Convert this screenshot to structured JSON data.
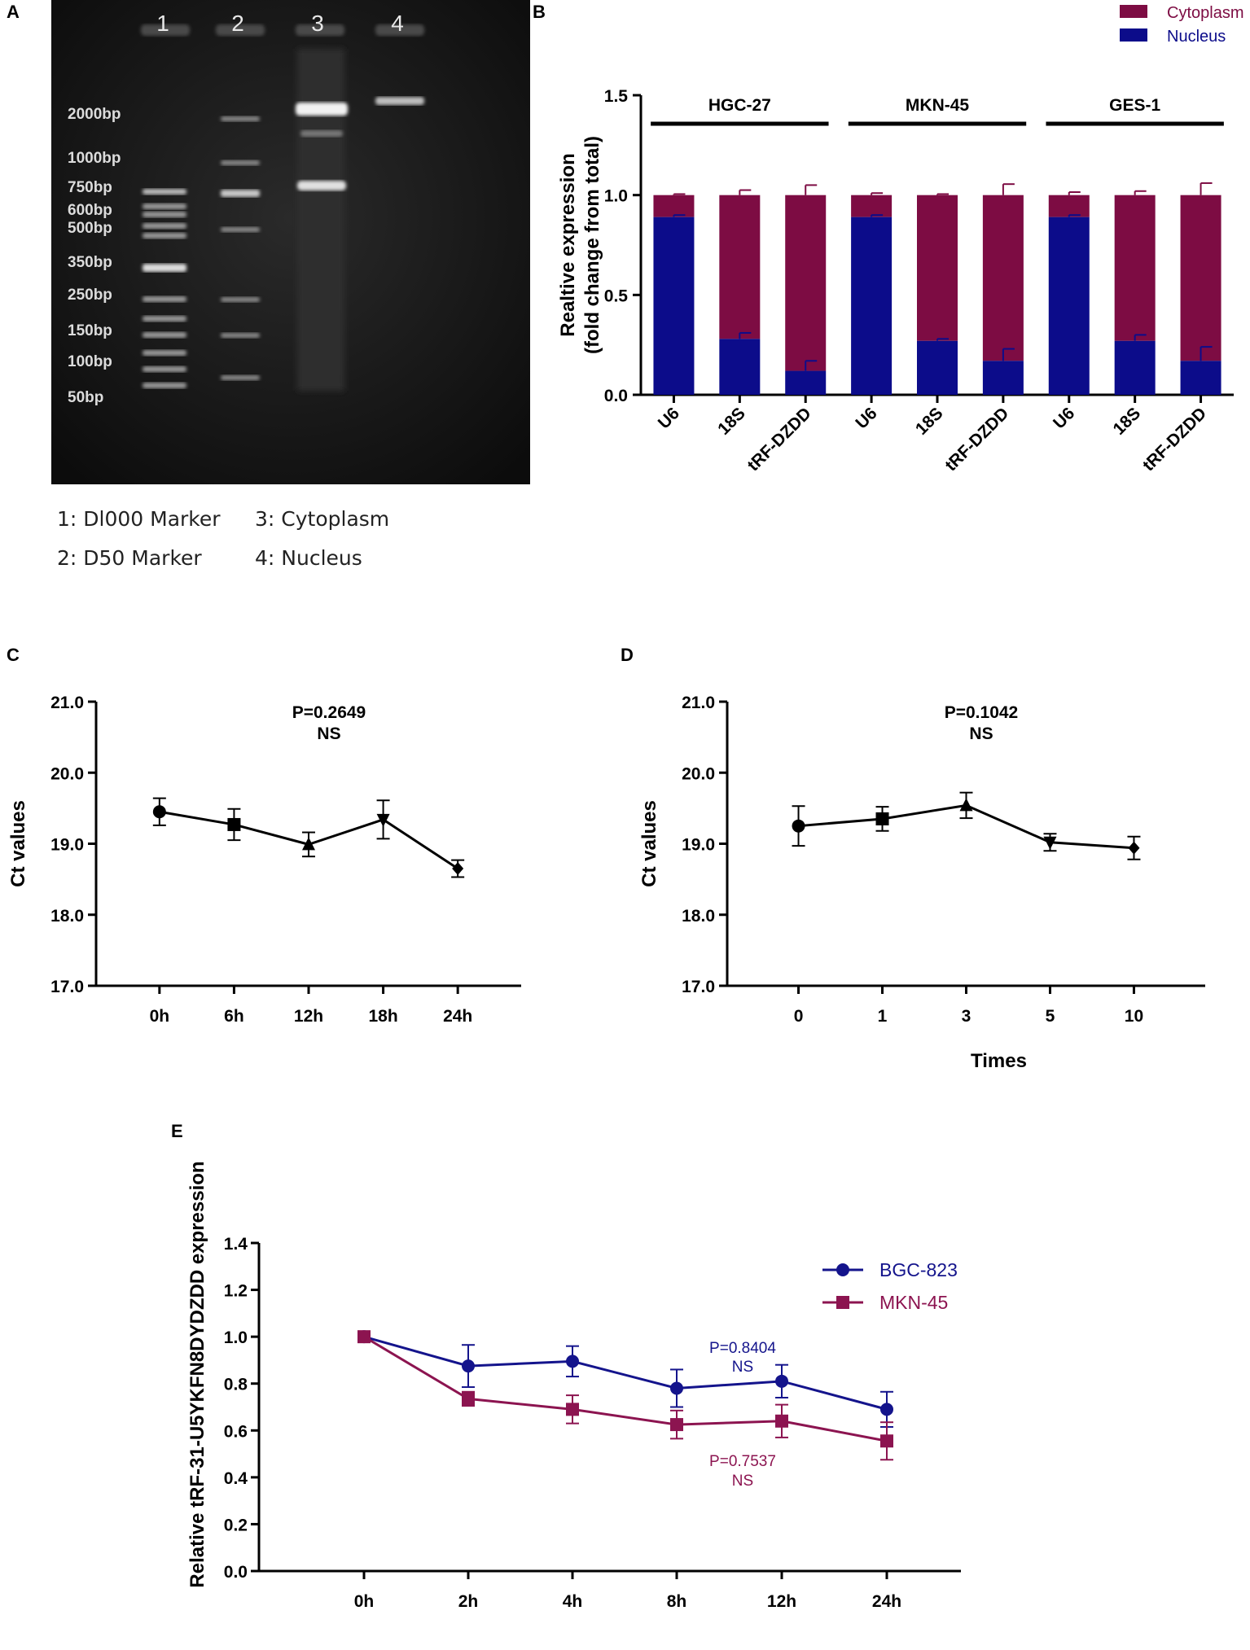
{
  "panel_labels": {
    "A": "A",
    "B": "B",
    "C": "C",
    "D": "D",
    "E": "E"
  },
  "colors": {
    "cytoplasm": "#7d0c43",
    "nucleus": "#0c0c8a",
    "bgc823": "#14148c",
    "mkn45": "#8c1450",
    "black": "#000000"
  },
  "gel": {
    "lane_numbers": [
      "1",
      "2",
      "3",
      "4"
    ],
    "marker_labels": [
      "2000bp",
      "1000bp",
      "750bp",
      "600bp",
      "500bp",
      "350bp",
      "250bp",
      "150bp",
      "100bp",
      "50bp"
    ],
    "legend": [
      "1: Dl000 Marker",
      "3: Cytoplasm",
      "2: D50 Marker",
      "4: Nucleus"
    ]
  },
  "chart_data": [
    {
      "id": "B",
      "type": "bar",
      "stacked": true,
      "ylabel_line1": "Realtive expression",
      "ylabel_line2": "(fold change from total)",
      "ylim": [
        0,
        1.5
      ],
      "yticks": [
        "0.0",
        "0.5",
        "1.0",
        "1.5"
      ],
      "legend": [
        "Cytoplasm",
        "Nucleus"
      ],
      "groups": [
        "HGC-27",
        "MKN-45",
        "GES-1"
      ],
      "categories": [
        "U6",
        "18S",
        "tRF-DZDD",
        "U6",
        "18S",
        "tRF-DZDD",
        "U6",
        "18S",
        "tRF-DZDD"
      ],
      "series": [
        {
          "name": "Nucleus",
          "values": [
            0.89,
            0.28,
            0.12,
            0.89,
            0.27,
            0.17,
            0.89,
            0.27,
            0.17
          ],
          "errors": [
            0.01,
            0.03,
            0.05,
            0.01,
            0.01,
            0.06,
            0.01,
            0.03,
            0.07
          ]
        },
        {
          "name": "Cytoplasm",
          "values": [
            0.11,
            0.72,
            0.88,
            0.11,
            0.73,
            0.83,
            0.11,
            0.73,
            0.83
          ],
          "errors": [
            0.005,
            0.025,
            0.05,
            0.01,
            0.005,
            0.055,
            0.015,
            0.02,
            0.06
          ]
        }
      ]
    },
    {
      "id": "C",
      "type": "line",
      "ylabel": "Ct values",
      "ylim": [
        17.0,
        21.0
      ],
      "yticks": [
        "17.0",
        "18.0",
        "19.0",
        "20.0",
        "21.0"
      ],
      "categories": [
        "0h",
        "6h",
        "12h",
        "18h",
        "24h"
      ],
      "values": [
        19.45,
        19.27,
        18.99,
        19.34,
        18.65
      ],
      "errors": [
        0.19,
        0.22,
        0.17,
        0.27,
        0.12
      ],
      "markers": [
        "circle",
        "square",
        "triangle-up",
        "triangle-down",
        "diamond"
      ],
      "annotation": [
        "P=0.2649",
        "NS"
      ]
    },
    {
      "id": "D",
      "type": "line",
      "ylabel": "Ct values",
      "xlabel": "Times",
      "ylim": [
        17.0,
        21.0
      ],
      "yticks": [
        "17.0",
        "18.0",
        "19.0",
        "20.0",
        "21.0"
      ],
      "categories": [
        "0",
        "1",
        "3",
        "5",
        "10"
      ],
      "values": [
        19.25,
        19.35,
        19.54,
        19.02,
        18.94
      ],
      "errors": [
        0.28,
        0.17,
        0.18,
        0.12,
        0.16
      ],
      "markers": [
        "circle",
        "square",
        "triangle-up",
        "triangle-down",
        "diamond"
      ],
      "annotation": [
        "P=0.1042",
        "NS"
      ]
    },
    {
      "id": "E",
      "type": "line",
      "ylabel": "Relative tRF-31-U5YKFN8DYDZDD expression",
      "ylim": [
        0.0,
        1.4
      ],
      "yticks": [
        "0.0",
        "0.2",
        "0.4",
        "0.6",
        "0.8",
        "1.0",
        "1.2",
        "1.4"
      ],
      "categories": [
        "0h",
        "2h",
        "4h",
        "8h",
        "12h",
        "24h"
      ],
      "series": [
        {
          "name": "BGC-823",
          "values": [
            1.0,
            0.875,
            0.895,
            0.78,
            0.81,
            0.69
          ],
          "errors": [
            0.0,
            0.09,
            0.065,
            0.08,
            0.07,
            0.075
          ],
          "annotation": [
            "P=0.8404",
            "NS"
          ]
        },
        {
          "name": "MKN-45",
          "values": [
            1.0,
            0.735,
            0.69,
            0.625,
            0.64,
            0.555
          ],
          "errors": [
            0.0,
            0.03,
            0.06,
            0.06,
            0.07,
            0.08
          ],
          "annotation": [
            "P=0.7537",
            "NS"
          ]
        }
      ]
    }
  ]
}
